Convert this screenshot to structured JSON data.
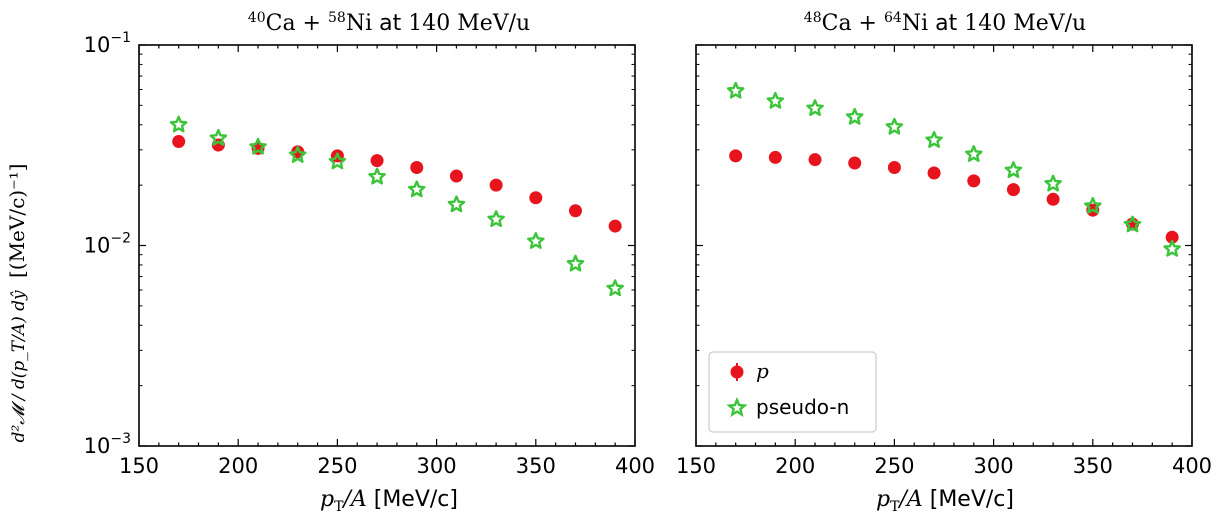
{
  "figure": {
    "ylabel_main": "d²𝓜 / d(p_T/A) dŷ",
    "ylabel_unit": "[(MeV/c)⁻¹]",
    "marker_colors": {
      "p": "#e8141d",
      "pseudo_n": "#3cc43a"
    }
  },
  "chart_data": [
    {
      "type": "scatter",
      "title": "⁴⁰Ca + ⁵⁸Ni at 140 MeV/u",
      "title_parts": {
        "a": "40",
        "b": "Ca",
        "c": " + ",
        "d": "58",
        "e": "Ni",
        "f": " at ",
        "g": "140 MeV/u"
      },
      "xlabel": "p_T/A [MeV/c]",
      "xlabel_parts": {
        "var": "p",
        "sub": "T",
        "rest": "/A",
        "unit": " [MeV/c]"
      },
      "ylabel": "d²𝓜 / d(p_T/A) dŷ [(MeV/c)⁻¹]",
      "xlim": [
        150,
        400
      ],
      "ylim": [
        0.001,
        0.1
      ],
      "yscale": "log",
      "xticks": [
        "150",
        "200",
        "250",
        "300",
        "350",
        "400"
      ],
      "yticks": [
        {
          "base": "10",
          "exp": "−1"
        },
        {
          "base": "10",
          "exp": "−2"
        },
        {
          "base": "10",
          "exp": "−3"
        }
      ],
      "legend": null,
      "series": [
        {
          "name": "p",
          "marker": "circle",
          "color": "#e8141d",
          "x": [
            170,
            190,
            210,
            230,
            250,
            270,
            290,
            310,
            330,
            350,
            370,
            390
          ],
          "y": [
            0.033,
            0.0317,
            0.0305,
            0.0293,
            0.028,
            0.0265,
            0.0245,
            0.0222,
            0.02,
            0.0173,
            0.0149,
            0.0125
          ]
        },
        {
          "name": "pseudo-n",
          "marker": "star",
          "color": "#3cc43a",
          "x": [
            170,
            190,
            210,
            230,
            250,
            270,
            290,
            310,
            330,
            350,
            370,
            390
          ],
          "y": [
            0.04,
            0.0343,
            0.031,
            0.0282,
            0.0262,
            0.022,
            0.019,
            0.016,
            0.0135,
            0.0105,
            0.0081,
            0.0061
          ]
        }
      ]
    },
    {
      "type": "scatter",
      "title": "⁴⁸Ca + ⁶⁴Ni at 140 MeV/u",
      "title_parts": {
        "a": "48",
        "b": "Ca",
        "c": " + ",
        "d": "64",
        "e": "Ni",
        "f": " at ",
        "g": "140 MeV/u"
      },
      "xlabel": "p_T/A [MeV/c]",
      "xlabel_parts": {
        "var": "p",
        "sub": "T",
        "rest": "/A",
        "unit": " [MeV/c]"
      },
      "xlim": [
        150,
        400
      ],
      "ylim": [
        0.001,
        0.1
      ],
      "yscale": "log",
      "xticks": [
        "150",
        "200",
        "250",
        "300",
        "350",
        "400"
      ],
      "legend": {
        "position": "lower-left",
        "entries": [
          "p",
          "pseudo-n"
        ]
      },
      "series": [
        {
          "name": "p",
          "marker": "circle",
          "color": "#e8141d",
          "x": [
            170,
            190,
            210,
            230,
            250,
            270,
            290,
            310,
            330,
            350,
            370,
            390
          ],
          "y": [
            0.028,
            0.0275,
            0.0268,
            0.0258,
            0.0245,
            0.023,
            0.021,
            0.019,
            0.017,
            0.015,
            0.0128,
            0.011
          ]
        },
        {
          "name": "pseudo-n",
          "marker": "star",
          "color": "#3cc43a",
          "x": [
            170,
            190,
            210,
            230,
            250,
            270,
            290,
            310,
            330,
            350,
            370,
            390
          ],
          "y": [
            0.059,
            0.0525,
            0.0483,
            0.0437,
            0.039,
            0.0335,
            0.0285,
            0.0237,
            0.0203,
            0.0157,
            0.0127,
            0.0096
          ]
        }
      ]
    }
  ]
}
